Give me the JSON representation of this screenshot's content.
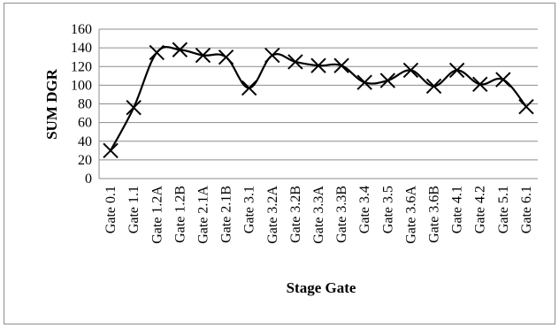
{
  "chart_data": {
    "type": "line",
    "title": "",
    "xlabel": "Stage Gate",
    "ylabel": "SUM DGR",
    "categories": [
      "Gate 0.1",
      "Gate 1.1",
      "Gate 1.2A",
      "Gate 1.2B",
      "Gate 2.1A",
      "Gate 2.1B",
      "Gate 3.1",
      "Gate 3.2A",
      "Gate 3.2B",
      "Gate 3.3A",
      "Gate 3.3B",
      "Gate 3.4",
      "Gate 3.5",
      "Gate 3.6A",
      "Gate 3.6B",
      "Gate 4.1",
      "Gate 4.2",
      "Gate 5.1",
      "Gate 6.1"
    ],
    "series": [
      {
        "values": [
          30,
          76,
          135,
          138,
          132,
          130,
          97,
          132,
          125,
          121,
          121,
          103,
          105,
          116,
          99,
          116,
          101,
          106,
          77
        ],
        "color": "#000000",
        "marker": "x",
        "smooth": true
      }
    ],
    "ylim": [
      0,
      160
    ],
    "yticks": [
      0,
      20,
      40,
      60,
      80,
      100,
      120,
      140,
      160
    ],
    "grid": true,
    "legend": "none"
  }
}
